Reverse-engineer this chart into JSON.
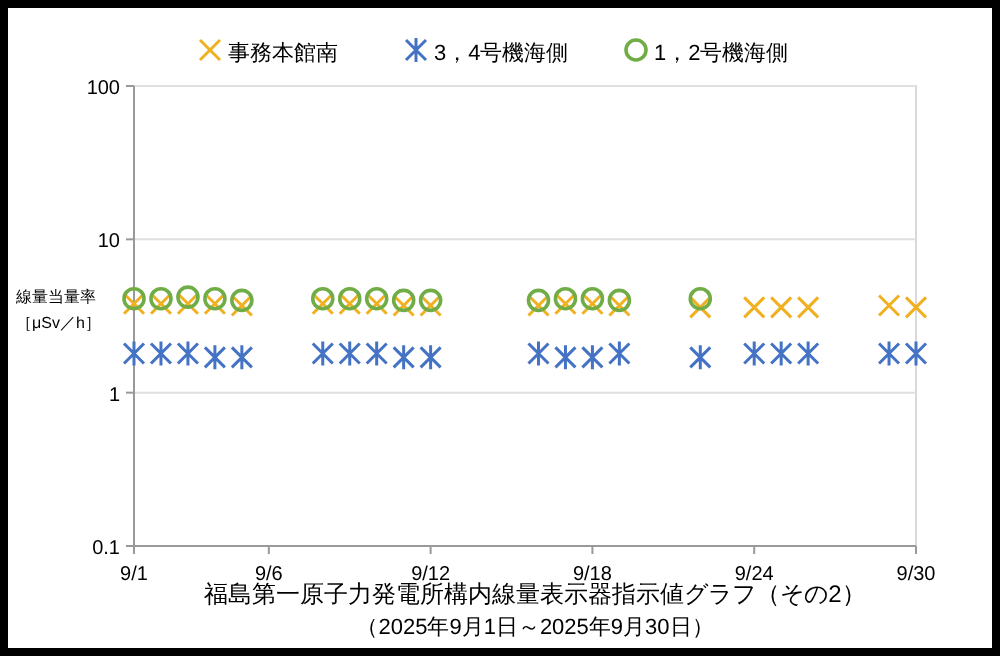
{
  "chart_data": {
    "type": "scatter",
    "title": "福島第一原子力発電所構内線量表示器指示値グラフ（その2）",
    "subtitle": "（2025年9月1日～2025年9月30日）",
    "ylabel": "線量当量率［μSv／h］",
    "log": true,
    "ylim": [
      0.1,
      100
    ],
    "yticks": [
      0.1,
      1,
      10,
      100
    ],
    "xlim": [
      "--09-01",
      "--09-30"
    ],
    "xticks": [
      {
        "value": "--09-01",
        "label": "9/1"
      },
      {
        "value": "--09-06",
        "label": "9/6"
      },
      {
        "value": "--09-12",
        "label": "9/12"
      },
      {
        "value": "--09-18",
        "label": "9/18"
      },
      {
        "value": "--09-24",
        "label": "9/24"
      },
      {
        "value": "--09-30",
        "label": "9/30"
      }
    ],
    "grid": "y",
    "legend": "top",
    "series": [
      {
        "name": "事務本館南",
        "color": "#f0b020",
        "marker": "cross",
        "x": [
          "--09-01",
          "--09-02",
          "--09-03",
          "--09-04",
          "--09-05",
          "--09-08",
          "--09-09",
          "--09-10",
          "--09-11",
          "--09-12",
          "--09-16",
          "--09-17",
          "--09-18",
          "--09-19",
          "--09-22",
          "--09-24",
          "--09-25",
          "--09-26",
          "--09-29",
          "--09-30"
        ],
        "values": [
          3.8,
          3.8,
          3.8,
          3.8,
          3.7,
          3.8,
          3.8,
          3.8,
          3.7,
          3.7,
          3.7,
          3.8,
          3.8,
          3.7,
          3.6,
          3.6,
          3.6,
          3.6,
          3.7,
          3.6
        ]
      },
      {
        "name": "3，4号機海側",
        "color": "#4472c4",
        "x": [
          "--09-01",
          "--09-02",
          "--09-03",
          "--09-04",
          "--09-05",
          "--09-08",
          "--09-09",
          "--09-10",
          "--09-11",
          "--09-12",
          "--09-16",
          "--09-17",
          "--09-18",
          "--09-19",
          "--09-22",
          "--09-24",
          "--09-25",
          "--09-26",
          "--09-29",
          "--09-30"
        ],
        "values": [
          1.8,
          1.8,
          1.8,
          1.7,
          1.7,
          1.8,
          1.8,
          1.8,
          1.7,
          1.7,
          1.8,
          1.7,
          1.7,
          1.8,
          1.7,
          1.8,
          1.8,
          1.8,
          1.8,
          1.8
        ]
      },
      {
        "name": "1，2号機海側",
        "color": "#70ad47",
        "marker": "circle",
        "x": [
          "--09-01",
          "--09-02",
          "--09-03",
          "--09-04",
          "--09-05",
          "--09-08",
          "--09-09",
          "--09-10",
          "--09-11",
          "--09-12",
          "--09-16",
          "--09-17",
          "--09-18",
          "--09-19",
          "--09-22"
        ],
        "values": [
          4.1,
          4.1,
          4.2,
          4.1,
          4.0,
          4.1,
          4.1,
          4.1,
          4.0,
          4.0,
          4.0,
          4.1,
          4.1,
          4.0,
          4.1
        ]
      }
    ]
  }
}
